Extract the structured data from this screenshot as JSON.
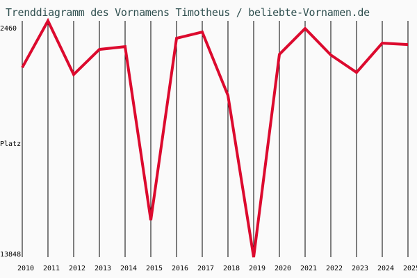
{
  "title": "Trenddiagramm des Vornamens Timotheus / beliebte-Vornamen.de",
  "colors": {
    "line": "#dc0a2e",
    "grid": "#000000",
    "background": "#fafafa",
    "title": "#2f4f4f"
  },
  "chart_data": {
    "type": "line",
    "title": "Trenddiagramm des Vornamens Timotheus / beliebte-Vornamen.de",
    "xlabel": "",
    "ylabel": "Platz",
    "y_inverted": true,
    "ylim": [
      2460,
      13848
    ],
    "y_tick_labels": [
      "2460",
      "Platz",
      "13848"
    ],
    "grid": {
      "vertical": true,
      "horizontal": false
    },
    "categories": [
      "2010",
      "2011",
      "2012",
      "2013",
      "2014",
      "2015",
      "2016",
      "2017",
      "2018",
      "2019",
      "2020",
      "2021",
      "2022",
      "2023",
      "2024",
      "2025"
    ],
    "series": [
      {
        "name": "Timotheus",
        "values": [
          4711,
          2460,
          5047,
          3838,
          3703,
          12070,
          3300,
          2998,
          6055,
          13848,
          4073,
          2830,
          4106,
          4946,
          3535,
          3602
        ]
      }
    ]
  }
}
